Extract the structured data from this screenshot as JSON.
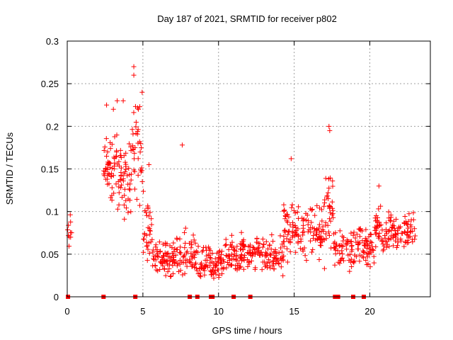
{
  "chart_data": {
    "type": "scatter",
    "title": "Day 187 of 2021, SRMTID for receiver p802",
    "xlabel": "GPS time / hours",
    "ylabel": "SRMTID / TECUs",
    "xlim": [
      0,
      24
    ],
    "ylim": [
      0,
      0.3
    ],
    "xticks": [
      0,
      5,
      10,
      15,
      20
    ],
    "xtick_labels": [
      "0",
      "5",
      "10",
      "15",
      "20"
    ],
    "yticks": [
      0,
      0.05,
      0.1,
      0.15,
      0.2,
      0.25,
      0.3
    ],
    "ytick_labels": [
      "0",
      "0.05",
      "0.1",
      "0.15",
      "0.2",
      "0.25",
      "0.3"
    ],
    "grid": true,
    "marker": "+",
    "color": "#ff0000",
    "zero_markers_x": [
      0.05,
      2.4,
      4.5,
      8.1,
      8.6,
      9.5,
      9.6,
      11.0,
      12.1,
      17.7,
      17.9,
      18.9,
      19.6
    ],
    "trend": [
      {
        "t0": 0.0,
        "t1": 0.3,
        "mean": 0.08,
        "spread": 0.025,
        "n": 10
      },
      {
        "t0": 2.4,
        "t1": 3.4,
        "mean": 0.16,
        "spread": 0.04,
        "n": 55
      },
      {
        "t0": 3.4,
        "t1": 4.3,
        "mean": 0.14,
        "spread": 0.045,
        "n": 50
      },
      {
        "t0": 4.3,
        "t1": 5.0,
        "mean": 0.17,
        "spread": 0.05,
        "n": 35
      },
      {
        "t0": 5.0,
        "t1": 5.6,
        "mean": 0.08,
        "spread": 0.04,
        "n": 30
      },
      {
        "t0": 5.6,
        "t1": 7.0,
        "mean": 0.045,
        "spread": 0.02,
        "n": 70
      },
      {
        "t0": 7.0,
        "t1": 8.5,
        "mean": 0.05,
        "spread": 0.02,
        "n": 70
      },
      {
        "t0": 8.5,
        "t1": 10.0,
        "mean": 0.04,
        "spread": 0.017,
        "n": 70
      },
      {
        "t0": 10.0,
        "t1": 11.5,
        "mean": 0.045,
        "spread": 0.018,
        "n": 70
      },
      {
        "t0": 11.5,
        "t1": 13.0,
        "mean": 0.055,
        "spread": 0.018,
        "n": 70
      },
      {
        "t0": 13.0,
        "t1": 14.3,
        "mean": 0.05,
        "spread": 0.018,
        "n": 60
      },
      {
        "t0": 14.3,
        "t1": 15.5,
        "mean": 0.08,
        "spread": 0.03,
        "n": 60
      },
      {
        "t0": 15.5,
        "t1": 17.0,
        "mean": 0.075,
        "spread": 0.028,
        "n": 70
      },
      {
        "t0": 17.0,
        "t1": 17.6,
        "mean": 0.1,
        "spread": 0.05,
        "n": 35
      },
      {
        "t0": 17.6,
        "t1": 19.0,
        "mean": 0.055,
        "spread": 0.02,
        "n": 60
      },
      {
        "t0": 19.0,
        "t1": 20.3,
        "mean": 0.06,
        "spread": 0.02,
        "n": 60
      },
      {
        "t0": 20.3,
        "t1": 21.5,
        "mean": 0.08,
        "spread": 0.025,
        "n": 60
      },
      {
        "t0": 21.5,
        "t1": 23.0,
        "mean": 0.075,
        "spread": 0.022,
        "n": 65
      }
    ],
    "peaks": [
      [
        3.3,
        0.23
      ],
      [
        3.7,
        0.23
      ],
      [
        4.4,
        0.27
      ],
      [
        4.4,
        0.26
      ],
      [
        4.95,
        0.24
      ],
      [
        7.6,
        0.178
      ],
      [
        14.8,
        0.162
      ],
      [
        17.3,
        0.2
      ],
      [
        17.35,
        0.195
      ],
      [
        2.6,
        0.225
      ],
      [
        3.05,
        0.22
      ],
      [
        4.7,
        0.22
      ],
      [
        5.4,
        0.155
      ],
      [
        20.6,
        0.13
      ]
    ]
  }
}
